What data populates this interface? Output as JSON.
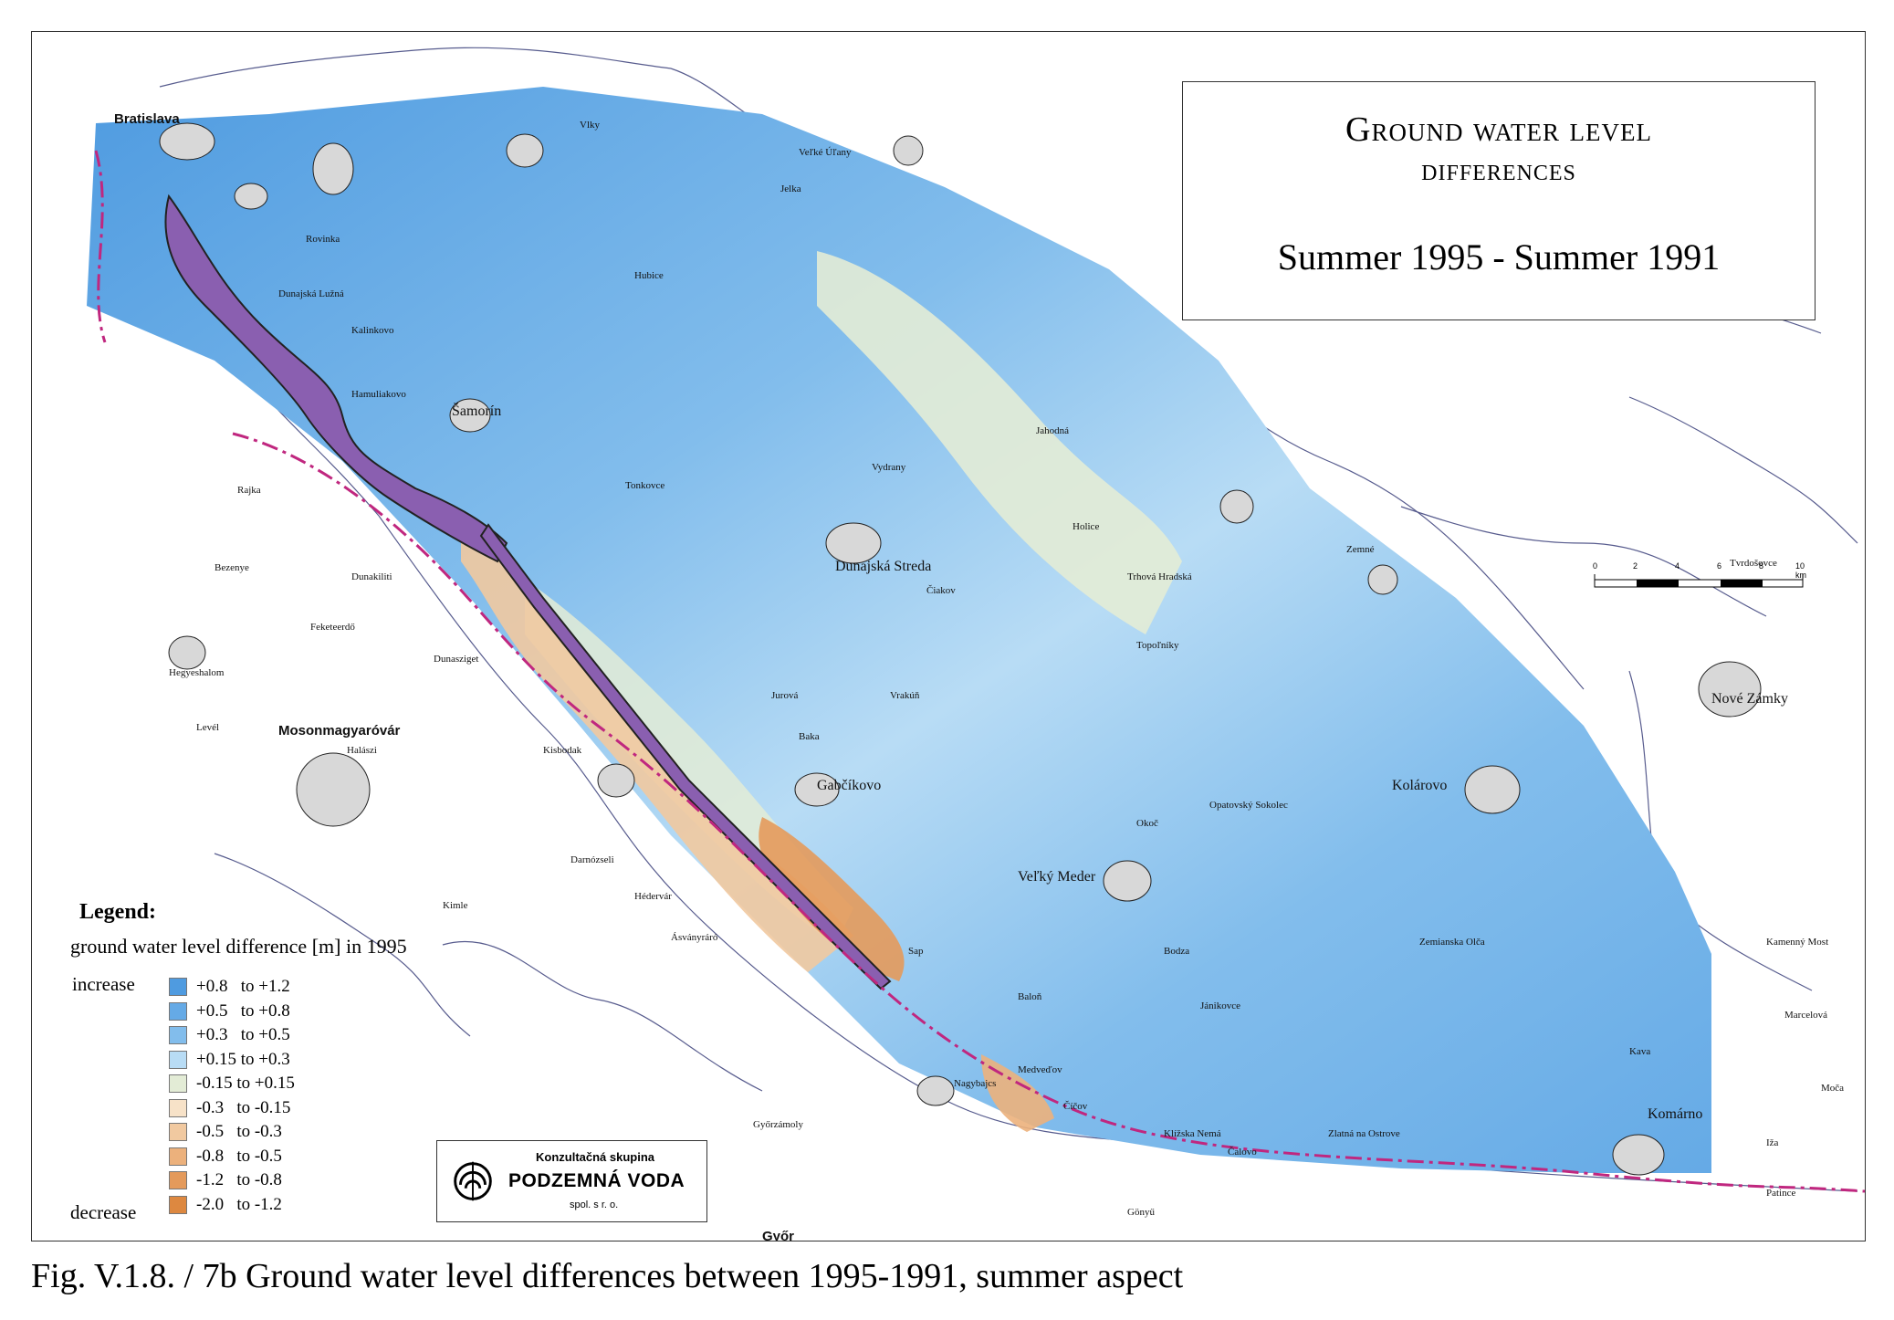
{
  "title": {
    "line1": "Ground water level",
    "line2": "differences",
    "line3": "Summer 1995 - Summer 1991"
  },
  "legend": {
    "title": "Legend:",
    "subtitle": "ground water level difference [m] in 1995",
    "increase_label": "increase",
    "decrease_label": "decrease",
    "classes": [
      {
        "label": "+0.8   to +1.2",
        "color": "#4f9be0"
      },
      {
        "label": "+0.5   to +0.8",
        "color": "#65aae6"
      },
      {
        "label": "+0.3   to +0.5",
        "color": "#82bdec"
      },
      {
        "label": "+0.15 to +0.3",
        "color": "#b8dcf5"
      },
      {
        "label": "-0.15 to +0.15",
        "color": "#e3ecd6"
      },
      {
        "label": "-0.3   to -0.15",
        "color": "#f7e2c8"
      },
      {
        "label": "-0.5   to -0.3",
        "color": "#f1c9a0"
      },
      {
        "label": "-0.8   to -0.5",
        "color": "#ecb17c"
      },
      {
        "label": "-1.2   to -0.8",
        "color": "#e49a5b"
      },
      {
        "label": "-2.0   to -1.2",
        "color": "#dd8840"
      }
    ]
  },
  "scale": {
    "ticks": [
      "0",
      "2",
      "4",
      "6",
      "8",
      "10 km"
    ]
  },
  "logo": {
    "top": "Konzultačná skupina",
    "name": "PODZEMNÁ VODA",
    "bottom": "spol. s r. o."
  },
  "caption": "Fig. V.1.8. / 7b  Ground water level differences between 1995-1991, summer aspect",
  "places": {
    "bratislava": "Bratislava",
    "samorin": "Šamorín",
    "dunajska_streda": "Dunajská Streda",
    "gabcikovo": "Gabčíkovo",
    "velky_meder": "Veľký Meder",
    "kolarovo": "Kolárovo",
    "komarno": "Komárno",
    "nove_zamky": "Nové Zámky",
    "mosonmagyarovar": "Mosonmagyaróvár",
    "gyor": "Győr",
    "bezenye": "Bezenye",
    "rajka": "Rajka",
    "dunakiliti": "Dunakiliti",
    "hegyeshalom": "Hegyeshalom",
    "level": "Levél",
    "feketeerdo": "Feketeerdő",
    "halaszi": "Halászi",
    "darnozseli": "Darnózseli",
    "hedervar": "Hédervár",
    "asvanyraro": "Ásványráró",
    "nagybajcs": "Nagybajcs",
    "gyorzamoly": "Győrzámoly",
    "gonyu": "Gönyű",
    "kisbodak": "Kisbodak",
    "kimle": "Kimle",
    "dunasziget": "Dunasziget",
    "vrakun": "Vrakúň",
    "topolniky": "Topoľníky",
    "okoc": "Okoč",
    "zlatna": "Zlatná na Ostrove",
    "calovo": "Čalovo",
    "janikovce": "Jánikovce",
    "kalinkovo": "Kalinkovo",
    "hamuliakovo": "Hamuliakovo",
    "rovinka": "Rovinka",
    "dunajska_luzna": "Dunajská Lužná",
    "vlky": "Vlky",
    "hubice": "Hubice",
    "jurova": "Jurová",
    "baka": "Baka",
    "sap": "Sap",
    "patince": "Patince",
    "holice": "Holice",
    "kava": "Kava",
    "tonkovce": "Tonkovce",
    "vydrany": "Vydrany",
    "trhova_hradska": "Trhová Hradská",
    "ciakov": "Čiakov",
    "jahodna": "Jahodná",
    "velke_ulany": "Veľké Úľany",
    "jelka": "Jelka",
    "zemne": "Zemné",
    "kamenny_most": "Kamenný Most",
    "tvrdosovce": "Tvrdošovce",
    "zemianska_olca": "Zemianska Olča",
    "bodza": "Bodza",
    "opatovsky_sokolec": "Opatovský Sokolec",
    "balon": "Baloň",
    "medvedov": "Medveďov",
    "klizska_nema": "Klížska Nemá",
    "ciciov": "Číčov",
    "moca": "Moča",
    "iza": "Iža",
    "marcelova": "Marcelová"
  }
}
